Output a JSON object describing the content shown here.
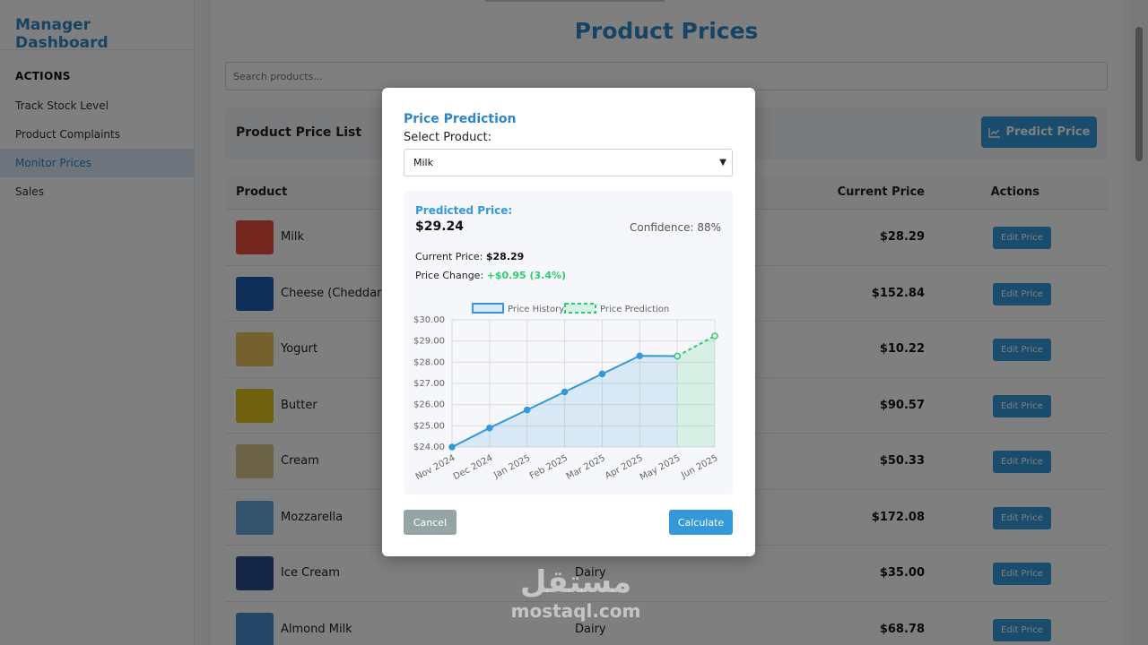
{
  "sidebar": {
    "brand": "Manager Dashboard",
    "section": "ACTIONS",
    "items": [
      {
        "label": "Track Stock Level"
      },
      {
        "label": "Product Complaints"
      },
      {
        "label": "Monitor Prices",
        "active": true
      },
      {
        "label": "Sales"
      }
    ]
  },
  "main": {
    "title": "Product Prices",
    "search_placeholder": "Search products...",
    "list_title": "Product Price List",
    "predict_button": "Predict Price",
    "columns": {
      "product": "Product",
      "current_price": "Current Price",
      "actions": "Actions"
    },
    "edit_label": "Edit Price",
    "rows": [
      {
        "name": "Milk",
        "category": "",
        "price": "$28.29",
        "thumb": "#e74c3c"
      },
      {
        "name": "Cheese (Cheddar)",
        "category": "",
        "price": "$152.84",
        "thumb": "#1f5fb0"
      },
      {
        "name": "Yogurt",
        "category": "",
        "price": "$10.22",
        "thumb": "#e8c35a"
      },
      {
        "name": "Butter",
        "category": "",
        "price": "$90.57",
        "thumb": "#e0c21f"
      },
      {
        "name": "Cream",
        "category": "",
        "price": "$50.33",
        "thumb": "#d8c48a"
      },
      {
        "name": "Mozzarella",
        "category": "",
        "price": "$172.08",
        "thumb": "#6ea8dc"
      },
      {
        "name": "Ice Cream",
        "category": "Dairy",
        "price": "$35.00",
        "thumb": "#2b4d8e"
      },
      {
        "name": "Almond Milk",
        "category": "Dairy",
        "price": "$68.78",
        "thumb": "#4a8fd0"
      }
    ]
  },
  "modal": {
    "title": "Price Prediction",
    "select_label": "Select Product:",
    "selected_product": "Milk",
    "predicted_label": "Predicted Price:",
    "predicted_value": "$29.24",
    "confidence": "Confidence: 88%",
    "current_label": "Current Price:",
    "current_value": "$28.29",
    "change_label": "Price Change:",
    "change_value": "+$0.95 (3.4%)",
    "cancel": "Cancel",
    "calculate": "Calculate"
  },
  "chart_data": {
    "type": "line",
    "x": [
      "Nov 2024",
      "Dec 2024",
      "Jan 2025",
      "Feb 2025",
      "Mar 2025",
      "Apr 2025",
      "May 2025",
      "Jun 2025"
    ],
    "series": [
      {
        "name": "Price History",
        "values": [
          24.0,
          24.9,
          25.75,
          26.6,
          27.45,
          28.3,
          28.29,
          null
        ],
        "color": "#3498db"
      },
      {
        "name": "Price Prediction",
        "values": [
          null,
          null,
          null,
          null,
          null,
          null,
          28.29,
          29.24
        ],
        "color": "#2ecc71"
      }
    ],
    "yticks": [
      "$24.00",
      "$25.00",
      "$26.00",
      "$27.00",
      "$28.00",
      "$29.00",
      "$30.00"
    ],
    "ylim": [
      24,
      30
    ],
    "legend": "top"
  },
  "watermark": {
    "arabic": "مستقل",
    "latin": "mostaql.com"
  }
}
